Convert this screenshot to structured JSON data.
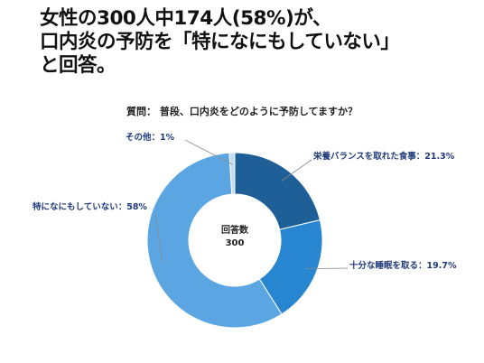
{
  "headline": {
    "line1": "女性の300人中174人(58%)が、",
    "line2": "口内炎の予防を「特になにもしていない」",
    "line3": "と回答。"
  },
  "question": "質問： 普段、口内炎をどのように予防してますか？",
  "chart_data": {
    "type": "pie",
    "style": "donut",
    "center_label": "回答数",
    "center_value": "300",
    "slices": [
      {
        "label": "栄養バランスを取れた食事：21.3%",
        "value": 21.3,
        "color": "#1e5f98"
      },
      {
        "label": "十分な睡眠を取る：19.7%",
        "value": 19.7,
        "color": "#2886d0"
      },
      {
        "label": "特になにもしていない：58%",
        "value": 58,
        "color": "#5ba6e2"
      },
      {
        "label": "その他：1%",
        "value": 1,
        "color": "#c5ddf2"
      }
    ]
  }
}
